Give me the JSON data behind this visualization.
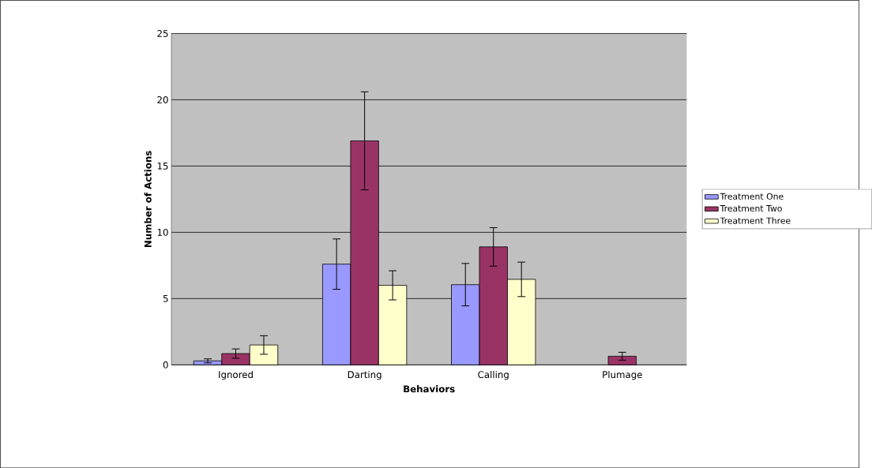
{
  "chart_data": {
    "type": "bar",
    "xlabel": "Behaviors",
    "ylabel": "Number of Actions",
    "categories": [
      "Ignored",
      "Darting",
      "Calling",
      "Plumage"
    ],
    "series": [
      {
        "name": "Treatment One",
        "color": "#9999ff",
        "values": [
          0.3,
          7.6,
          6.05,
          null
        ],
        "errors": [
          0.15,
          1.9,
          1.6,
          null
        ]
      },
      {
        "name": "Treatment Two",
        "color": "#993366",
        "values": [
          0.85,
          16.9,
          8.9,
          0.65
        ],
        "errors": [
          0.35,
          3.7,
          1.45,
          0.3
        ]
      },
      {
        "name": "Treatment Three",
        "color": "#ffffcc",
        "values": [
          1.5,
          6.0,
          6.45,
          null
        ],
        "errors": [
          0.7,
          1.1,
          1.3,
          null
        ]
      }
    ],
    "ylim": [
      0,
      25
    ],
    "yticks": [
      0,
      5,
      10,
      15,
      20,
      25
    ],
    "grid": "y",
    "legend": "right"
  }
}
